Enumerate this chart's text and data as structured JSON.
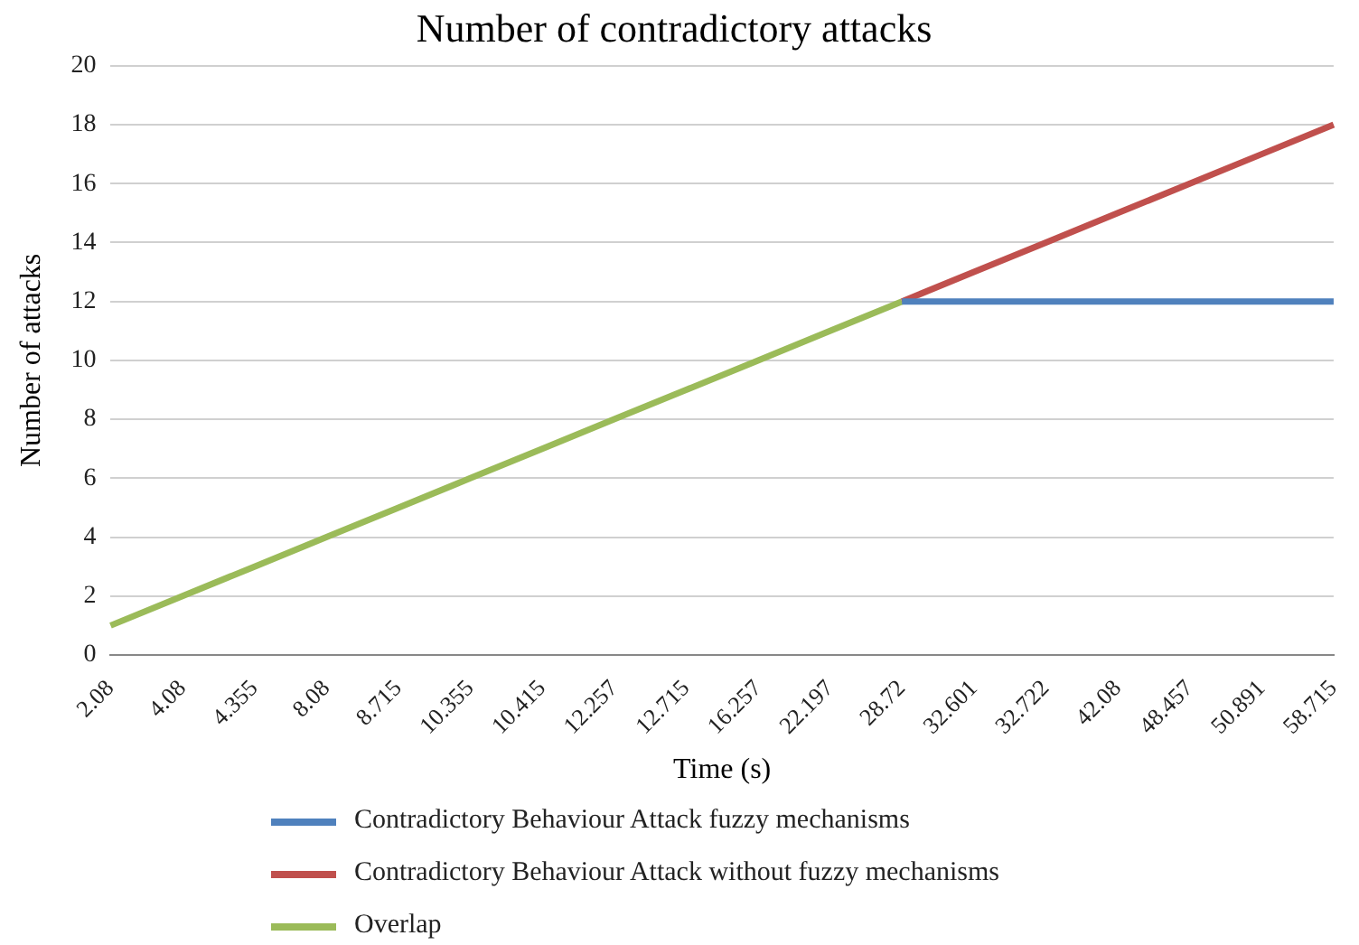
{
  "chart_data": {
    "type": "line",
    "title": "Number of contradictory attacks",
    "xlabel": "Time (s)",
    "ylabel": "Number of attacks",
    "categories": [
      "2.08",
      "4.08",
      "4.355",
      "8.08",
      "8.715",
      "10.355",
      "10.415",
      "12.257",
      "12.715",
      "16.257",
      "22.197",
      "28.72",
      "32.601",
      "32.722",
      "42.08",
      "48.457",
      "50.891",
      "58.715"
    ],
    "series": [
      {
        "name": "Contradictory Behaviour Attack fuzzy mechanisms",
        "color": "#4f81bd",
        "values": [
          null,
          null,
          null,
          null,
          null,
          null,
          null,
          null,
          null,
          null,
          null,
          12,
          12,
          12,
          12,
          12,
          12,
          12
        ]
      },
      {
        "name": "Contradictory Behaviour Attack without fuzzy mechanisms",
        "color": "#c0504d",
        "values": [
          null,
          null,
          null,
          null,
          null,
          null,
          null,
          null,
          null,
          null,
          null,
          12,
          13,
          14,
          15,
          16,
          17,
          18
        ]
      },
      {
        "name": "Overlap",
        "color": "#9bbb59",
        "values": [
          1,
          2,
          3,
          4,
          5,
          6,
          7,
          8,
          9,
          10,
          11,
          12,
          null,
          null,
          null,
          null,
          null,
          null
        ]
      }
    ],
    "ylim": [
      0,
      20
    ],
    "yticks": [
      0,
      2,
      4,
      6,
      8,
      10,
      12,
      14,
      16,
      18,
      20
    ],
    "grid": "y",
    "legend": "bottom",
    "marker": "none",
    "line_style": "solid"
  }
}
